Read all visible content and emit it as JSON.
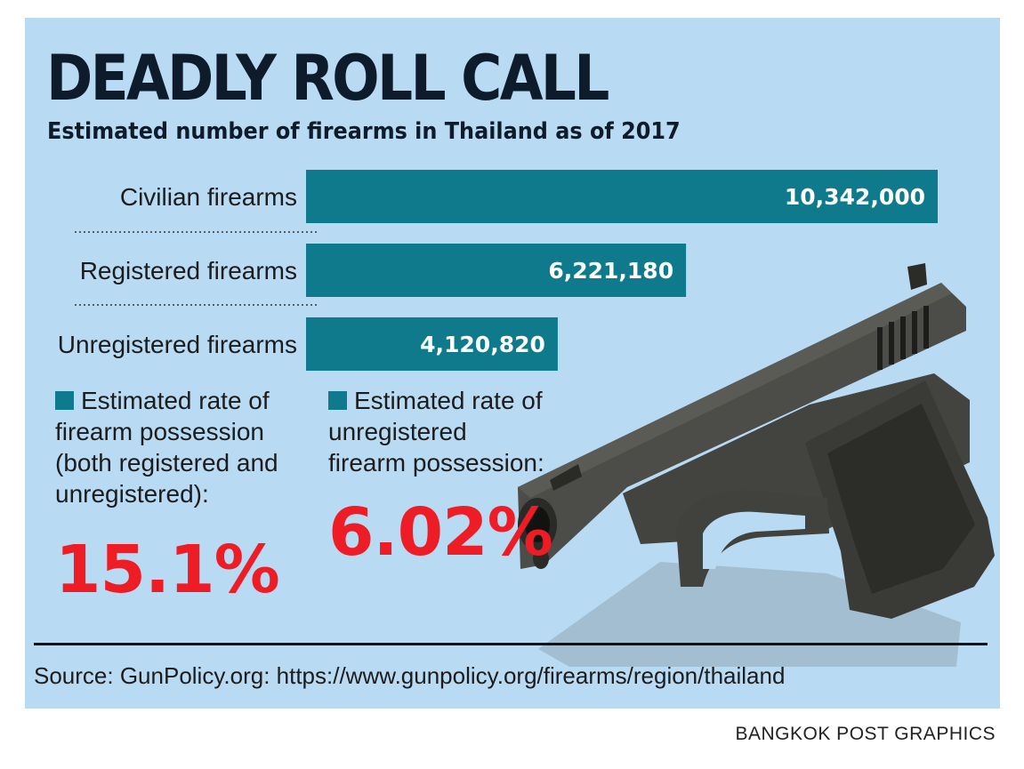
{
  "header": {
    "title": "DEADLY ROLL CALL",
    "subtitle": "Estimated number of  firearms in Thailand as of 2017"
  },
  "chart_data": {
    "type": "bar",
    "orientation": "horizontal",
    "title": "DEADLY ROLL CALL",
    "subtitle": "Estimated number of  firearms in Thailand as of 2017",
    "categories": [
      "Civilian firearms",
      "Registered firearms",
      "Unregistered firearms"
    ],
    "values": [
      10342000,
      6221180,
      4120820
    ],
    "value_labels": [
      "10,342,000",
      "6,221,180",
      "4,120,820"
    ],
    "xlabel": "",
    "ylabel": "",
    "xlim": [
      0,
      10342000
    ],
    "grid": false,
    "bar_color": "#0e7a8c"
  },
  "stats": [
    {
      "label": "Estimated rate of firearm possession (both registered and unregistered):",
      "value": "15.1%"
    },
    {
      "label": "Estimated rate of unregistered firearm possession:",
      "value": "6.02%"
    }
  ],
  "colors": {
    "background": "#b8daf2",
    "bar": "#0e7a8c",
    "highlight": "#ee1c25",
    "text": "#1c1c1c"
  },
  "illustration": {
    "icon": "pistol-icon"
  },
  "footer": {
    "source": "Source: GunPolicy.org: https://www.gunpolicy.org/firearms/region/thailand",
    "credit": "BANGKOK POST GRAPHICS"
  }
}
